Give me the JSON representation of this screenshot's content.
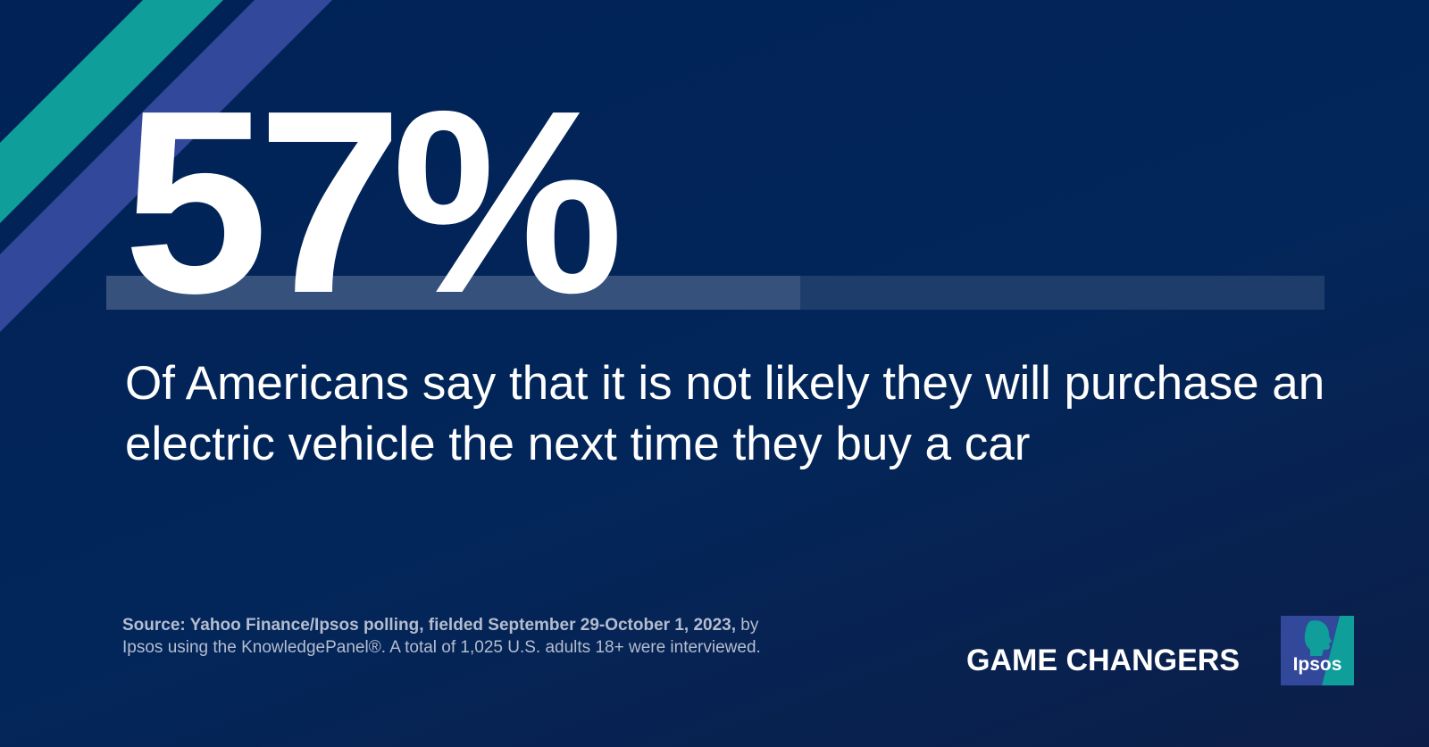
{
  "headline": {
    "value": "57%",
    "fraction": 0.57
  },
  "statement": "Of Americans say that it is not likely they will purchase an electric vehicle the next time they buy a car",
  "source": {
    "bold": "Source: Yahoo Finance/Ipsos polling, fielded September 29-October 1, 2023,",
    "rest": " by Ipsos using the KnowledgePanel®.  A total of 1,025 U.S. adults 18+ were interviewed."
  },
  "brand": {
    "tagline": "GAME CHANGERS",
    "logo_text": "Ipsos",
    "logo_icon": "ipsos-profile-logo-icon"
  },
  "colors": {
    "background": "#002256",
    "stripe_teal": "#0f9e9a",
    "stripe_blue": "#32489b",
    "bar_track": "#1f3d6b",
    "bar_fill": "#36527c",
    "text": "#ffffff",
    "source_text": "#b4bdcf"
  }
}
